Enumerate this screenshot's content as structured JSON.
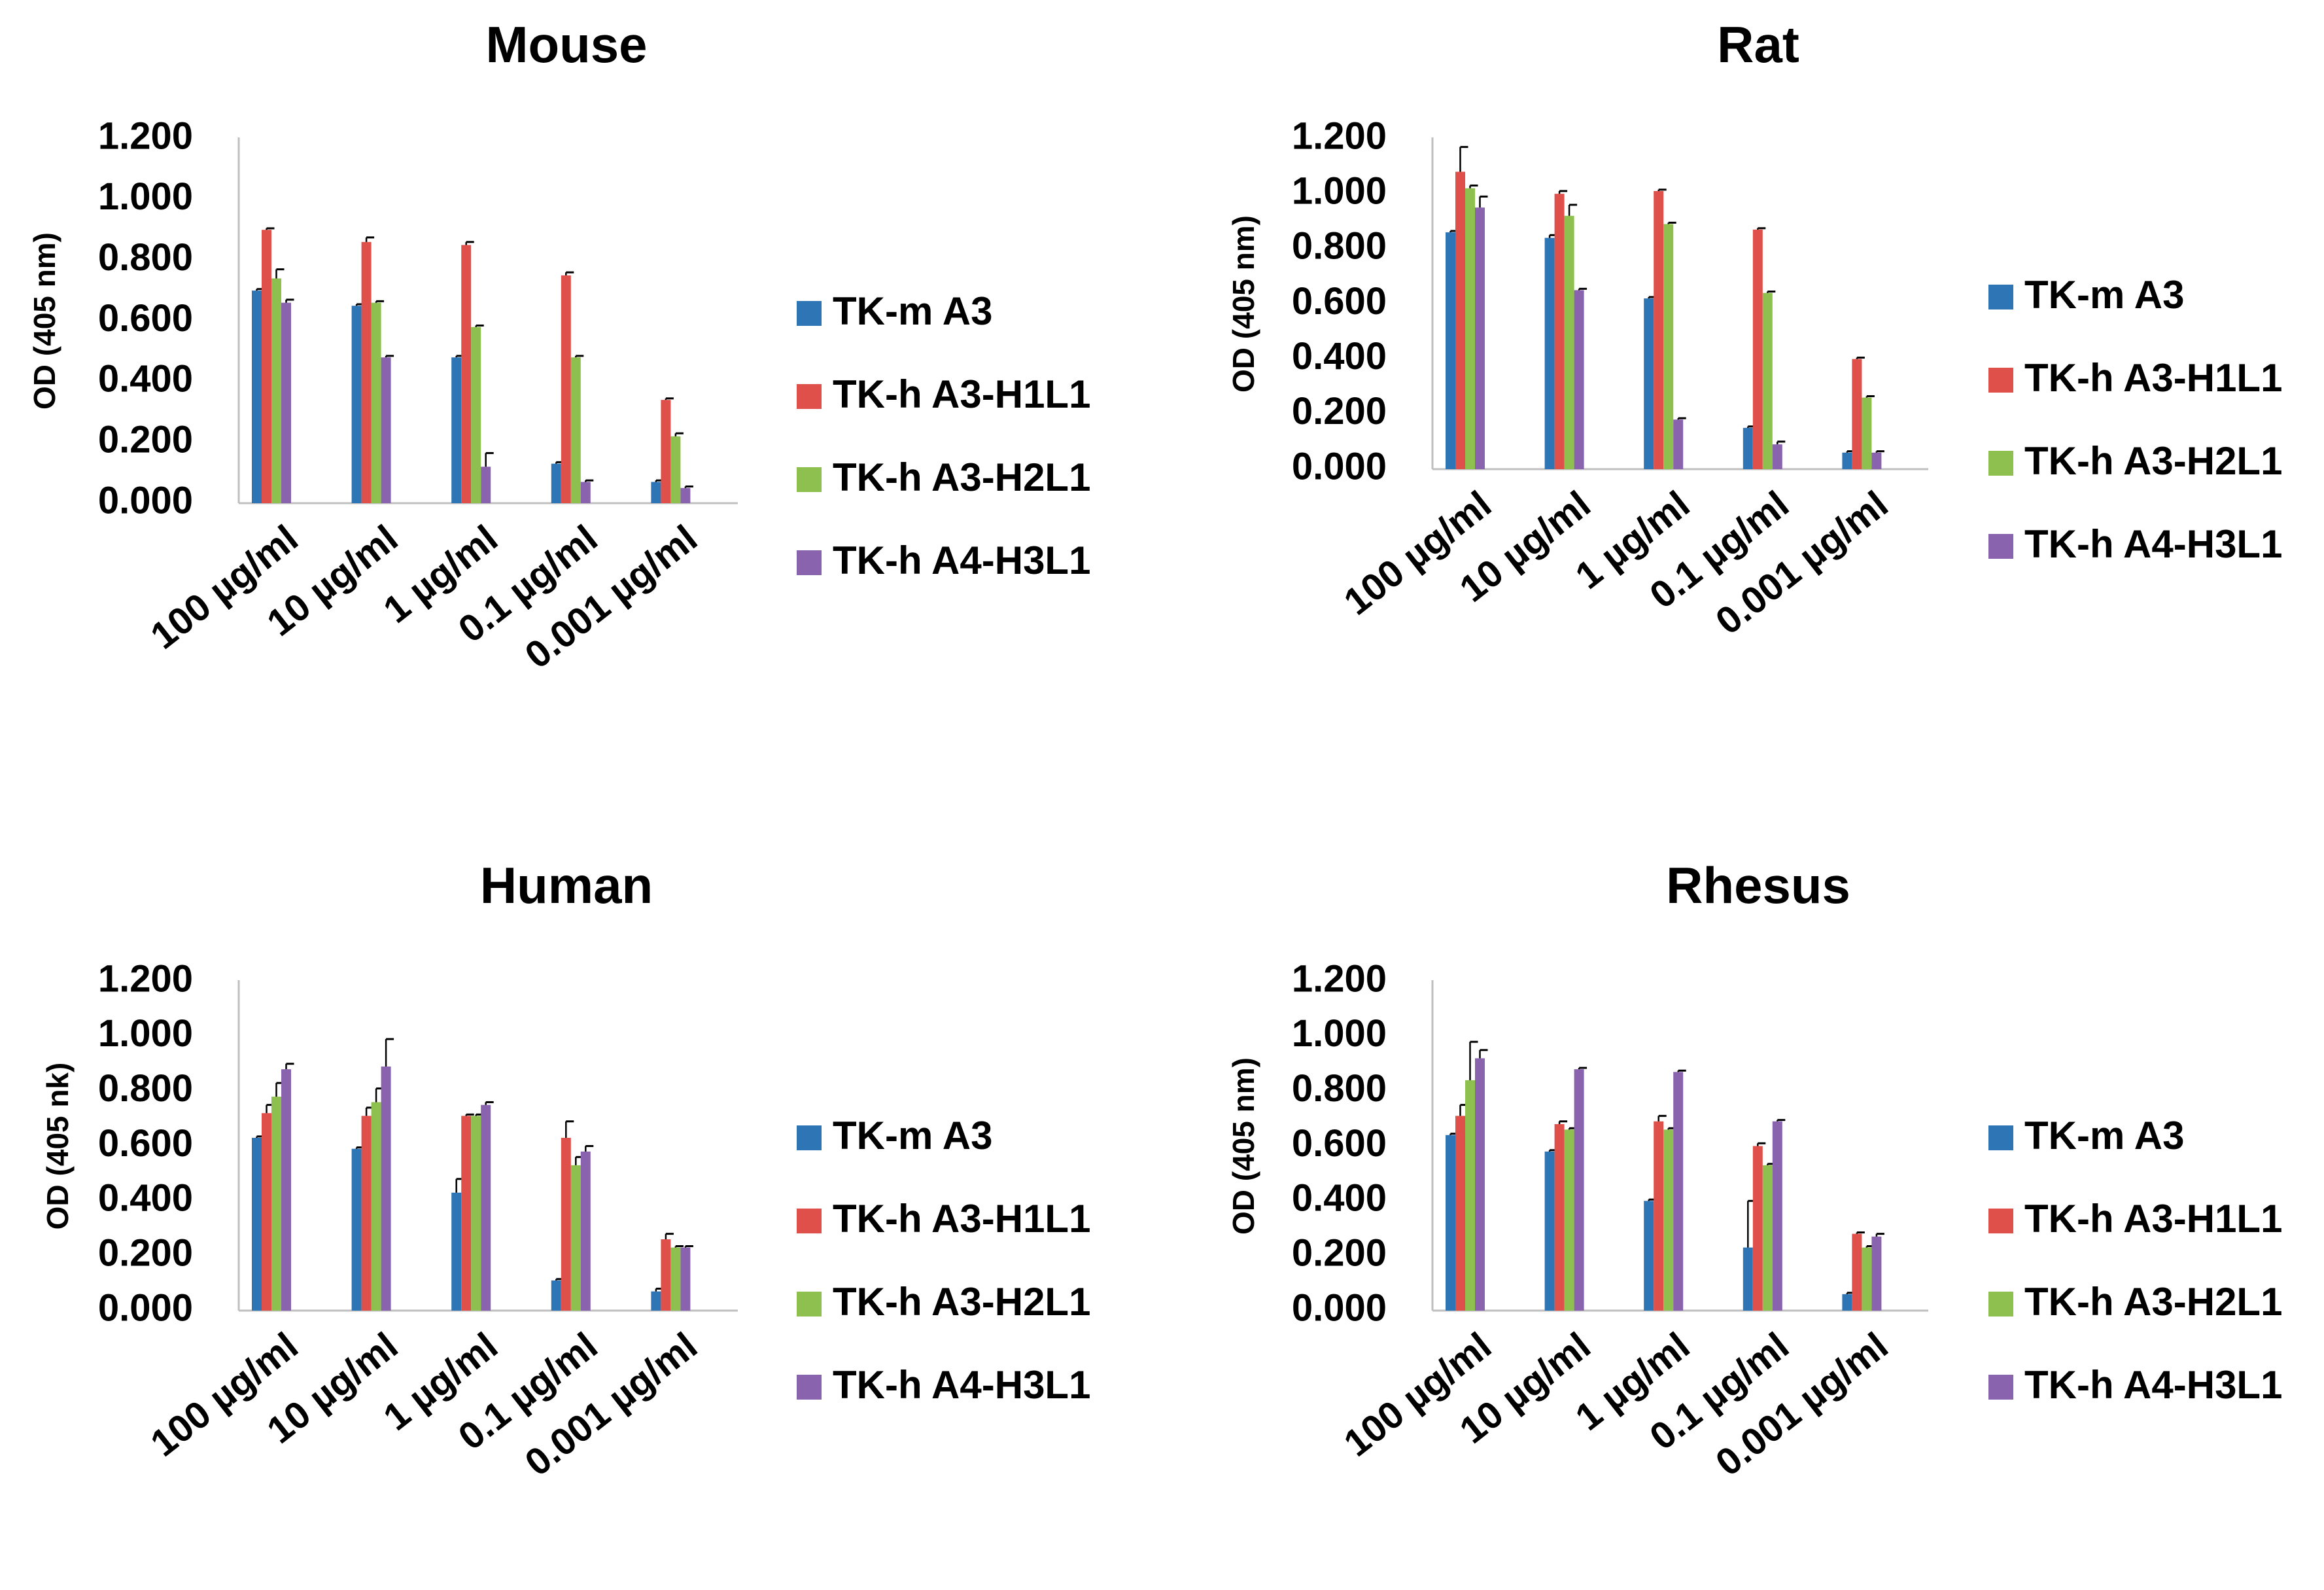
{
  "figure": {
    "description_visible": false
  },
  "series_colors": {
    "TK-m A3": "#2e75b6",
    "TK-h A3-H1L1": "#e0504b",
    "TK-h A3-H2L1": "#8ec04f",
    "TK-h A4-H3L1": "#8a63ae"
  },
  "chart_data": [
    {
      "type": "bar",
      "title": "Mouse",
      "xlabel": "",
      "ylabel": "OD (405 nm)",
      "ylim": [
        0,
        1.2
      ],
      "yticks": [
        "0.000",
        "0.200",
        "0.400",
        "0.600",
        "0.800",
        "1.000",
        "1.200"
      ],
      "categories": [
        "100 µg/ml",
        "10 µg/ml",
        "1 µg/ml",
        "0.1 µg/ml",
        "0.001 µg/ml"
      ],
      "legend_position": "right",
      "series": [
        {
          "name": "TK-m A3",
          "values": [
            0.7,
            0.65,
            0.48,
            0.13,
            0.07
          ],
          "errors": [
            0.005,
            0.005,
            0.005,
            0.005,
            0.005
          ]
        },
        {
          "name": "TK-h A3-H1L1",
          "values": [
            0.9,
            0.86,
            0.85,
            0.75,
            0.34
          ],
          "errors": [
            0.005,
            0.015,
            0.01,
            0.01,
            0.005
          ]
        },
        {
          "name": "TK-h A3-H2L1",
          "values": [
            0.74,
            0.66,
            0.58,
            0.48,
            0.22
          ],
          "errors": [
            0.03,
            0.005,
            0.005,
            0.005,
            0.01
          ]
        },
        {
          "name": "TK-h A4-H3L1",
          "values": [
            0.66,
            0.48,
            0.12,
            0.07,
            0.05
          ],
          "errors": [
            0.01,
            0.005,
            0.045,
            0.005,
            0.005
          ]
        }
      ]
    },
    {
      "type": "bar",
      "title": "Rat",
      "xlabel": "",
      "ylabel": "OD (405 nm)",
      "ylim": [
        0,
        1.2
      ],
      "yticks": [
        "0.000",
        "0.200",
        "0.400",
        "0.600",
        "0.800",
        "1.000",
        "1.200"
      ],
      "categories": [
        "100 µg/ml",
        "10 µg/ml",
        "1 µg/ml",
        "0.1 µg/ml",
        "0.001 µg/ml"
      ],
      "legend_position": "right",
      "series": [
        {
          "name": "TK-m A3",
          "values": [
            0.86,
            0.84,
            0.62,
            0.15,
            0.06
          ],
          "errors": [
            0.005,
            0.01,
            0.005,
            0.005,
            0.005
          ]
        },
        {
          "name": "TK-h A3-H1L1",
          "values": [
            1.08,
            1.0,
            1.01,
            0.87,
            0.4
          ],
          "errors": [
            0.09,
            0.01,
            0.005,
            0.005,
            0.005
          ]
        },
        {
          "name": "TK-h A3-H2L1",
          "values": [
            1.02,
            0.92,
            0.89,
            0.64,
            0.26
          ],
          "errors": [
            0.01,
            0.04,
            0.005,
            0.005,
            0.005
          ]
        },
        {
          "name": "TK-h A4-H3L1",
          "values": [
            0.95,
            0.65,
            0.18,
            0.09,
            0.06
          ],
          "errors": [
            0.04,
            0.005,
            0.005,
            0.01,
            0.005
          ]
        }
      ]
    },
    {
      "type": "bar",
      "title": "Human",
      "xlabel": "",
      "ylabel": "OD (405 nk)",
      "ylim": [
        0,
        1.2
      ],
      "yticks": [
        "0.000",
        "0.200",
        "0.400",
        "0.600",
        "0.800",
        "1.000",
        "1.200"
      ],
      "categories": [
        "100 µg/ml",
        "10 µg/ml",
        "1 µg/ml",
        "0.1 µg/ml",
        "0.001 µg/ml"
      ],
      "legend_position": "right",
      "series": [
        {
          "name": "TK-m A3",
          "values": [
            0.63,
            0.59,
            0.43,
            0.11,
            0.07
          ],
          "errors": [
            0.005,
            0.005,
            0.05,
            0.005,
            0.01
          ]
        },
        {
          "name": "TK-h A3-H1L1",
          "values": [
            0.72,
            0.71,
            0.71,
            0.63,
            0.26
          ],
          "errors": [
            0.03,
            0.03,
            0.005,
            0.06,
            0.02
          ]
        },
        {
          "name": "TK-h A3-H2L1",
          "values": [
            0.78,
            0.76,
            0.71,
            0.53,
            0.23
          ],
          "errors": [
            0.05,
            0.05,
            0.005,
            0.03,
            0.005
          ]
        },
        {
          "name": "TK-h A4-H3L1",
          "values": [
            0.88,
            0.89,
            0.75,
            0.58,
            0.23
          ],
          "errors": [
            0.02,
            0.1,
            0.01,
            0.02,
            0.005
          ]
        }
      ]
    },
    {
      "type": "bar",
      "title": "Rhesus",
      "xlabel": "",
      "ylabel": "OD (405 nm)",
      "ylim": [
        0,
        1.2
      ],
      "yticks": [
        "0.000",
        "0.200",
        "0.400",
        "0.600",
        "0.800",
        "1.000",
        "1.200"
      ],
      "categories": [
        "100 µg/ml",
        "10 µg/ml",
        "1 µg/ml",
        "0.1 µg/ml",
        "0.001 µg/ml"
      ],
      "legend_position": "right",
      "series": [
        {
          "name": "TK-m A3",
          "values": [
            0.64,
            0.58,
            0.4,
            0.23,
            0.06
          ],
          "errors": [
            0.005,
            0.005,
            0.005,
            0.17,
            0.005
          ]
        },
        {
          "name": "TK-h A3-H1L1",
          "values": [
            0.71,
            0.68,
            0.69,
            0.6,
            0.28
          ],
          "errors": [
            0.04,
            0.01,
            0.02,
            0.01,
            0.005
          ]
        },
        {
          "name": "TK-h A3-H2L1",
          "values": [
            0.84,
            0.66,
            0.66,
            0.53,
            0.23
          ],
          "errors": [
            0.14,
            0.005,
            0.005,
            0.005,
            0.005
          ]
        },
        {
          "name": "TK-h A4-H3L1",
          "values": [
            0.92,
            0.88,
            0.87,
            0.69,
            0.27
          ],
          "errors": [
            0.03,
            0.005,
            0.005,
            0.005,
            0.01
          ]
        }
      ]
    }
  ]
}
